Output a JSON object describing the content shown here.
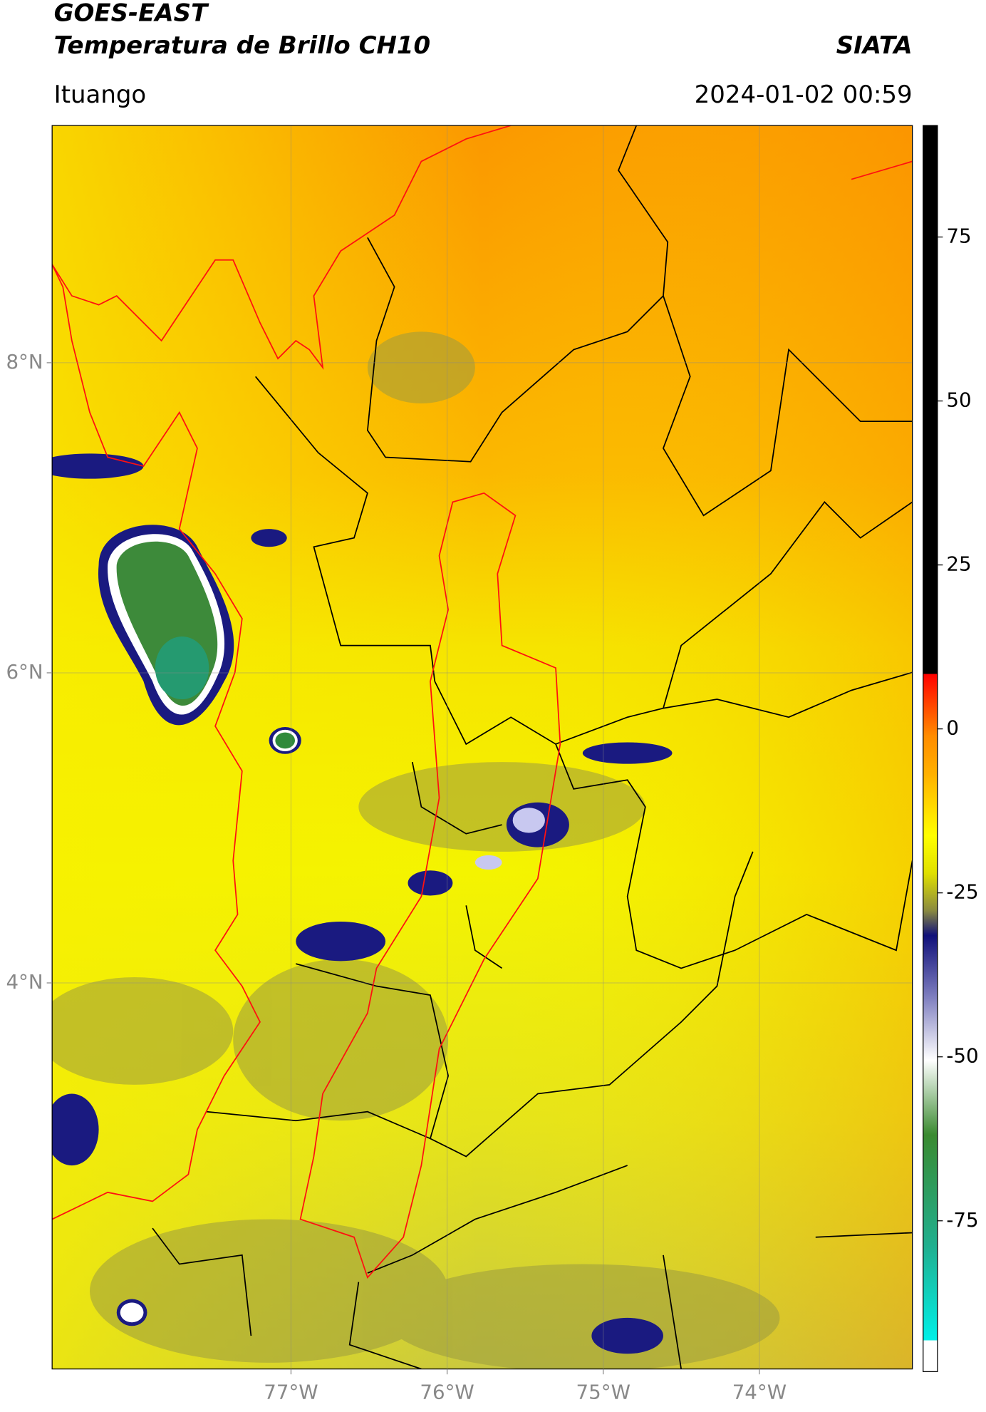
{
  "header": {
    "title": "GOES-EAST",
    "subtitle": "Temperatura de Brillo CH10",
    "source": "SIATA",
    "location": "Ituango",
    "timestamp": "2024-01-02 00:59"
  },
  "map": {
    "xlim": [
      -78.53,
      -73.02
    ],
    "ylim": [
      1.51,
      9.53
    ],
    "grid": true,
    "xticks": [
      {
        "value": -77,
        "label": "77°W"
      },
      {
        "value": -76,
        "label": "76°W"
      },
      {
        "value": -75,
        "label": "75°W"
      },
      {
        "value": -74,
        "label": "74°W"
      }
    ],
    "yticks": [
      {
        "value": 8,
        "label": "8°N"
      },
      {
        "value": 6,
        "label": "6°N"
      },
      {
        "value": 4,
        "label": "4°N"
      }
    ]
  },
  "colorbar": {
    "lim": [
      -98,
      92
    ],
    "ticks": [
      75,
      50,
      25,
      0,
      -25,
      -50,
      -75
    ]
  }
}
